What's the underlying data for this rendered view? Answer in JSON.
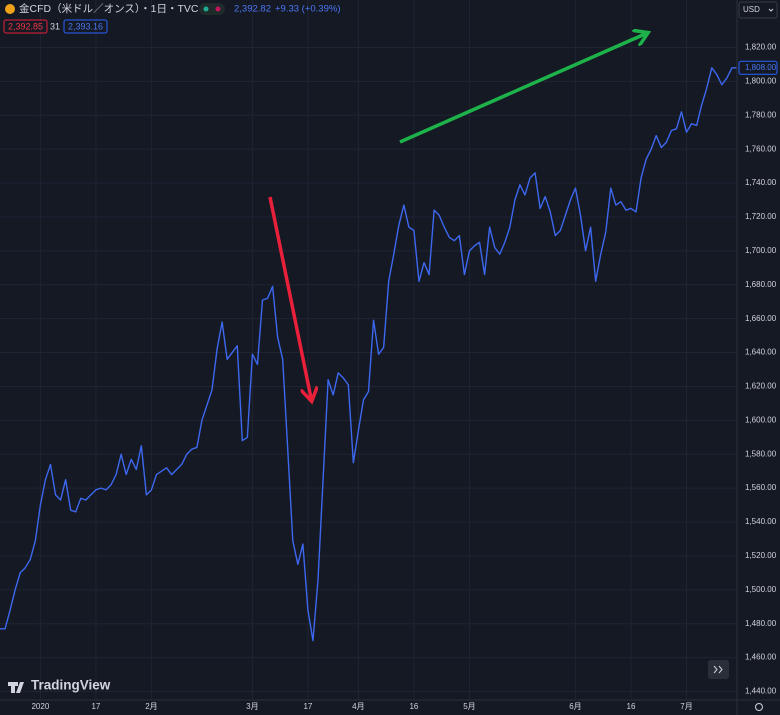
{
  "header": {
    "symbol": "金CFD（米ドル／オンス）・1日・TVC",
    "price": "2,392.82",
    "change": "+9.33 (+0.39%)",
    "bid": "2,392.85",
    "spread": "31",
    "ask": "2,393.16"
  },
  "currency": "USD",
  "brand": "TradingView",
  "chart_data": {
    "type": "line",
    "color": "#3d68f0",
    "grid": true,
    "ylim": [
      1435,
      1848
    ],
    "yticks": [
      {
        "value": 1440,
        "label": "1,440.00"
      },
      {
        "value": 1460,
        "label": "1,460.00"
      },
      {
        "value": 1480,
        "label": "1,480.00"
      },
      {
        "value": 1500,
        "label": "1,500.00"
      },
      {
        "value": 1520,
        "label": "1,520.00"
      },
      {
        "value": 1540,
        "label": "1,540.00"
      },
      {
        "value": 1560,
        "label": "1,560.00"
      },
      {
        "value": 1580,
        "label": "1,580.00"
      },
      {
        "value": 1600,
        "label": "1,600.00"
      },
      {
        "value": 1620,
        "label": "1,620.00"
      },
      {
        "value": 1640,
        "label": "1,640.00"
      },
      {
        "value": 1660,
        "label": "1,660.00"
      },
      {
        "value": 1680,
        "label": "1,680.00"
      },
      {
        "value": 1700,
        "label": "1,700.00"
      },
      {
        "value": 1720,
        "label": "1,720.00"
      },
      {
        "value": 1740,
        "label": "1,740.00"
      },
      {
        "value": 1760,
        "label": "1,760.00"
      },
      {
        "value": 1780,
        "label": "1,780.00"
      },
      {
        "value": 1800,
        "label": "1,800.00"
      },
      {
        "value": 1820,
        "label": "1,820.00"
      }
    ],
    "price_label": {
      "value": 1808,
      "label": "1,808.00"
    },
    "categories": [
      null,
      null,
      null,
      null,
      null,
      null,
      null,
      null,
      "2020",
      null,
      null,
      null,
      null,
      null,
      null,
      null,
      null,
      null,
      null,
      "17",
      null,
      null,
      null,
      null,
      null,
      null,
      null,
      null,
      null,
      null,
      "2月",
      null,
      null,
      null,
      null,
      null,
      null,
      null,
      null,
      null,
      null,
      null,
      null,
      null,
      null,
      null,
      null,
      null,
      null,
      null,
      "3月",
      null,
      null,
      null,
      null,
      null,
      null,
      null,
      null,
      null,
      null,
      "17",
      null,
      null,
      null,
      null,
      null,
      null,
      null,
      null,
      null,
      "4月",
      null,
      null,
      null,
      null,
      null,
      null,
      null,
      null,
      null,
      null,
      "16",
      null,
      null,
      null,
      null,
      null,
      null,
      null,
      null,
      null,
      null,
      "5月",
      null,
      null,
      null,
      null,
      null,
      null,
      null,
      null,
      null,
      null,
      null,
      null,
      null,
      null,
      null,
      null,
      null,
      null,
      null,
      null,
      "6月",
      null,
      null,
      null,
      null,
      null,
      null,
      null,
      null,
      null,
      null,
      "16",
      null,
      null,
      null,
      null,
      null,
      null,
      null,
      null,
      null,
      null,
      "7月",
      null,
      null,
      null,
      null,
      null,
      null,
      null,
      null,
      null,
      null
    ],
    "values": [
      1477,
      1477,
      1488,
      1500,
      1510,
      1513,
      1518,
      1529,
      1550,
      1565,
      1574,
      1556,
      1553,
      1565,
      1547,
      1546,
      1554,
      1553,
      1556,
      1559,
      1560,
      1559,
      1562,
      1568,
      1580,
      1568,
      1577,
      1571,
      1585,
      1556,
      1559,
      1568,
      1570,
      1572,
      1568,
      1571,
      1574,
      1580,
      1583,
      1584,
      1600,
      1609,
      1618,
      1642,
      1658,
      1636,
      1640,
      1644,
      1588,
      1590,
      1639,
      1633,
      1671,
      1672,
      1679,
      1649,
      1636,
      1583,
      1529,
      1515,
      1527,
      1488,
      1470,
      1506,
      1565,
      1624,
      1615,
      1628,
      1625,
      1621,
      1575,
      1594,
      1612,
      1617,
      1659,
      1639,
      1643,
      1682,
      1698,
      1715,
      1727,
      1714,
      1712,
      1682,
      1693,
      1686,
      1724,
      1721,
      1714,
      1708,
      1706,
      1709,
      1686,
      1700,
      1703,
      1705,
      1686,
      1714,
      1702,
      1698,
      1705,
      1714,
      1730,
      1739,
      1733,
      1743,
      1746,
      1725,
      1732,
      1723,
      1709,
      1712,
      1721,
      1730,
      1737,
      1721,
      1700,
      1714,
      1682,
      1698,
      1711,
      1737,
      1727,
      1729,
      1724,
      1725,
      1723,
      1743,
      1754,
      1760,
      1768,
      1761,
      1764,
      1771,
      1772,
      1782,
      1770,
      1775,
      1774,
      1786,
      1796,
      1808,
      1804,
      1798,
      1802,
      1808,
      1808
    ]
  }
}
